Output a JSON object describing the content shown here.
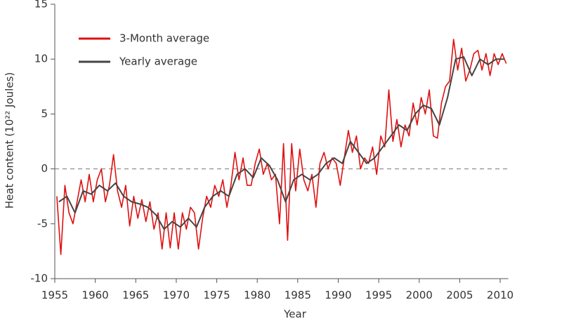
{
  "chart_data": {
    "type": "line",
    "x_label": "Year",
    "y_label": "Heat content (10²² Joules)",
    "xlim": [
      1955,
      2011
    ],
    "xticks": [
      1955,
      1960,
      1965,
      1970,
      1975,
      1980,
      1985,
      1990,
      1995,
      2000,
      2005,
      2010
    ],
    "ylim": [
      -10,
      15
    ],
    "yticks": [
      -10,
      -5,
      0,
      5,
      10,
      15
    ],
    "reference_line": 0,
    "legend": "upper left",
    "series": [
      {
        "name": "3-Month average",
        "color": "#e01010",
        "x": [
          1955.25,
          1955.75,
          1956.25,
          1956.75,
          1957.25,
          1957.75,
          1958.25,
          1958.75,
          1959.25,
          1959.75,
          1960.25,
          1960.75,
          1961.25,
          1961.75,
          1962.25,
          1962.75,
          1963.25,
          1963.75,
          1964.25,
          1964.75,
          1965.25,
          1965.75,
          1966.25,
          1966.75,
          1967.25,
          1967.75,
          1968.25,
          1968.75,
          1969.25,
          1969.75,
          1970.25,
          1970.75,
          1971.25,
          1971.75,
          1972.25,
          1972.75,
          1973.25,
          1973.75,
          1974.25,
          1974.75,
          1975.25,
          1975.75,
          1976.25,
          1976.75,
          1977.25,
          1977.75,
          1978.25,
          1978.75,
          1979.25,
          1979.75,
          1980.25,
          1980.75,
          1981.25,
          1981.75,
          1982.25,
          1982.75,
          1983.25,
          1983.75,
          1984.25,
          1984.75,
          1985.25,
          1985.75,
          1986.25,
          1986.75,
          1987.25,
          1987.75,
          1988.25,
          1988.75,
          1989.25,
          1989.75,
          1990.25,
          1990.75,
          1991.25,
          1991.75,
          1992.25,
          1992.75,
          1993.25,
          1993.75,
          1994.25,
          1994.75,
          1995.25,
          1995.75,
          1996.25,
          1996.75,
          1997.25,
          1997.75,
          1998.25,
          1998.75,
          1999.25,
          1999.75,
          2000.25,
          2000.75,
          2001.25,
          2001.75,
          2002.25,
          2002.75,
          2003.25,
          2003.75,
          2004.25,
          2004.75,
          2005.25,
          2005.75,
          2006.25,
          2006.75,
          2007.25,
          2007.75,
          2008.25,
          2008.75,
          2009.25,
          2009.75,
          2010.25,
          2010.75
        ],
        "values": [
          -2.5,
          -7.8,
          -1.5,
          -4,
          -5,
          -3,
          -1,
          -3,
          -0.5,
          -3,
          -1,
          0,
          -3,
          -1.5,
          1.3,
          -2,
          -3.5,
          -1.5,
          -5.2,
          -2.5,
          -4.5,
          -2.8,
          -4.8,
          -3,
          -5.5,
          -4,
          -7.3,
          -4,
          -7.2,
          -4,
          -7.3,
          -4,
          -5.5,
          -3.5,
          -4,
          -7.3,
          -4.5,
          -2.5,
          -3.5,
          -1.5,
          -2.5,
          -1,
          -3.5,
          -1.5,
          1.5,
          -1,
          1,
          -1.5,
          -1.5,
          0.5,
          1.8,
          -0.5,
          0.5,
          -1,
          -0.5,
          -5,
          2.3,
          -6.5,
          2.3,
          -2,
          1.8,
          -1,
          -2,
          -0.5,
          -3.5,
          0.5,
          1.5,
          0,
          1,
          0.5,
          -1.5,
          1,
          3.5,
          1.5,
          3,
          0,
          1,
          0.5,
          2,
          -0.5,
          3,
          2,
          7.2,
          2.5,
          4.5,
          2,
          4,
          3,
          6,
          4,
          6.5,
          5,
          7.2,
          3,
          2.8,
          6,
          7.5,
          8,
          11.8,
          9,
          11,
          8,
          9,
          10.5,
          10.8,
          9,
          10.5,
          8.5,
          10.5,
          9.5,
          10.5,
          9.6
        ]
      },
      {
        "name": "Yearly average",
        "color": "#444444",
        "x": [
          1955.5,
          1956.5,
          1957.5,
          1958.5,
          1959.5,
          1960.5,
          1961.5,
          1962.5,
          1963.5,
          1964.5,
          1965.5,
          1966.5,
          1967.5,
          1968.5,
          1969.5,
          1970.5,
          1971.5,
          1972.5,
          1973.5,
          1974.5,
          1975.5,
          1976.5,
          1977.5,
          1978.5,
          1979.5,
          1980.5,
          1981.5,
          1982.5,
          1983.5,
          1984.5,
          1985.5,
          1986.5,
          1987.5,
          1988.5,
          1989.5,
          1990.5,
          1991.5,
          1992.5,
          1993.5,
          1994.5,
          1995.5,
          1996.5,
          1997.5,
          1998.5,
          1999.5,
          2000.5,
          2001.5,
          2002.5,
          2003.5,
          2004.5,
          2005.5,
          2006.5,
          2007.5,
          2008.5,
          2009.5,
          2010.5
        ],
        "values": [
          -3,
          -2.5,
          -4,
          -2,
          -2.3,
          -1.5,
          -2,
          -1.3,
          -2.5,
          -3,
          -3.2,
          -3.5,
          -4.2,
          -5.5,
          -4.8,
          -5.3,
          -4.5,
          -5.3,
          -3.5,
          -2.5,
          -2,
          -2.5,
          -0.5,
          0,
          -0.8,
          1,
          0.3,
          -1,
          -3,
          -1,
          -0.5,
          -1,
          -0.5,
          0.5,
          1,
          0.5,
          2.5,
          1.5,
          0.5,
          1,
          2,
          3,
          4,
          3.5,
          5,
          5.8,
          5.5,
          4,
          6.5,
          10,
          10.2,
          8.5,
          10,
          9.5,
          10,
          10
        ]
      }
    ]
  }
}
